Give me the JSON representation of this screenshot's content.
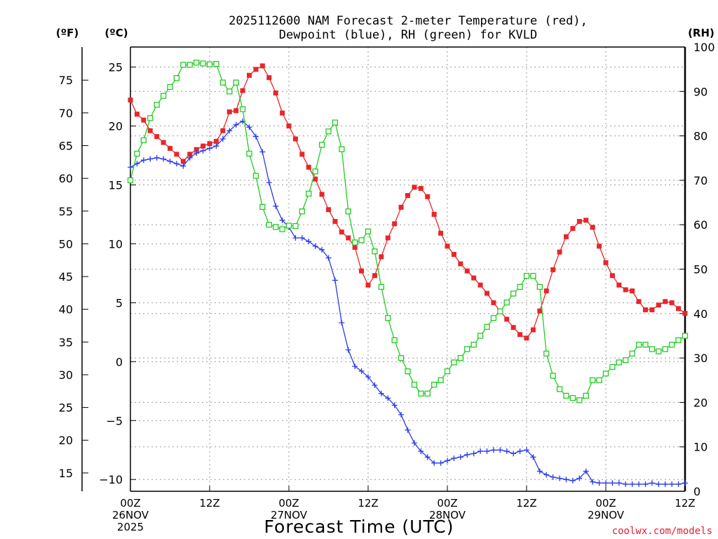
{
  "chart_data": {
    "type": "line",
    "title_line1": "2025112600 NAM Forecast 2-meter Temperature (red),",
    "title_line2": "Dewpoint (blue), RH (green) for KVLD",
    "xlabel": "Forecast Time (UTC)",
    "credit": "coolwx.com/models",
    "unit_f": "(ºF)",
    "unit_c": "(ºC)",
    "unit_rh": "(RH)",
    "celsius_ticks": [
      "25",
      "20",
      "15",
      "10",
      "5",
      "0",
      "−5",
      "−10"
    ],
    "celsius_values": [
      25,
      20,
      15,
      10,
      5,
      0,
      -5,
      -10
    ],
    "fahrenheit_ticks": [
      "75",
      "70",
      "65",
      "60",
      "55",
      "50",
      "45",
      "40",
      "35",
      "30",
      "25",
      "20",
      "15"
    ],
    "fahrenheit_values": [
      75,
      70,
      65,
      60,
      55,
      50,
      45,
      40,
      35,
      30,
      25,
      20,
      15
    ],
    "rh_ticks": [
      "100",
      "90",
      "80",
      "70",
      "60",
      "50",
      "40",
      "30",
      "20",
      "10",
      "0"
    ],
    "rh_values": [
      100,
      90,
      80,
      70,
      60,
      50,
      40,
      30,
      20,
      10,
      0
    ],
    "ylim_c": [
      -11,
      26.7
    ],
    "ylim_rh": [
      0,
      100
    ],
    "x_hours_range": [
      0,
      84
    ],
    "x_ticks": [
      {
        "hour": 0,
        "lines": [
          "00Z",
          "26NOV",
          "2025"
        ]
      },
      {
        "hour": 12,
        "lines": [
          "12Z"
        ]
      },
      {
        "hour": 24,
        "lines": [
          "00Z",
          "27NOV"
        ]
      },
      {
        "hour": 36,
        "lines": [
          "12Z"
        ]
      },
      {
        "hour": 48,
        "lines": [
          "00Z",
          "28NOV"
        ]
      },
      {
        "hour": 60,
        "lines": [
          "12Z"
        ]
      },
      {
        "hour": 72,
        "lines": [
          "00Z",
          "29NOV"
        ]
      },
      {
        "hour": 84,
        "lines": [
          "12Z"
        ]
      }
    ],
    "grid": true,
    "series": [
      {
        "name": "Temperature",
        "units": "°C",
        "color": "#e8262a",
        "marker": "filled-square",
        "values": [
          [
            0,
            22.2
          ],
          [
            1,
            21.0
          ],
          [
            2,
            20.5
          ],
          [
            3,
            19.6
          ],
          [
            4,
            19.1
          ],
          [
            5,
            18.6
          ],
          [
            6,
            18.1
          ],
          [
            7,
            17.6
          ],
          [
            8,
            17.0
          ],
          [
            9,
            17.6
          ],
          [
            10,
            18.0
          ],
          [
            11,
            18.3
          ],
          [
            12,
            18.5
          ],
          [
            13,
            18.7
          ],
          [
            14,
            19.6
          ],
          [
            15,
            21.2
          ],
          [
            16,
            21.3
          ],
          [
            17,
            23.0
          ],
          [
            18,
            24.3
          ],
          [
            19,
            24.8
          ],
          [
            20,
            25.1
          ],
          [
            21,
            24.1
          ],
          [
            22,
            22.8
          ],
          [
            23,
            21.1
          ],
          [
            24,
            20.0
          ],
          [
            25,
            18.9
          ],
          [
            26,
            17.6
          ],
          [
            27,
            16.5
          ],
          [
            28,
            15.5
          ],
          [
            29,
            14.2
          ],
          [
            30,
            12.9
          ],
          [
            31,
            11.9
          ],
          [
            32,
            11.0
          ],
          [
            33,
            10.5
          ],
          [
            34,
            9.7
          ],
          [
            35,
            7.7
          ],
          [
            36,
            6.5
          ],
          [
            37,
            7.3
          ],
          [
            38,
            8.9
          ],
          [
            39,
            10.5
          ],
          [
            40,
            11.7
          ],
          [
            41,
            13.1
          ],
          [
            42,
            14.1
          ],
          [
            43,
            14.8
          ],
          [
            44,
            14.7
          ],
          [
            45,
            14.0
          ],
          [
            46,
            12.5
          ],
          [
            47,
            10.9
          ],
          [
            48,
            9.8
          ],
          [
            49,
            9.1
          ],
          [
            50,
            8.3
          ],
          [
            51,
            7.7
          ],
          [
            52,
            7.1
          ],
          [
            53,
            6.5
          ],
          [
            54,
            5.8
          ],
          [
            55,
            5.0
          ],
          [
            56,
            4.3
          ],
          [
            57,
            3.6
          ],
          [
            58,
            2.9
          ],
          [
            59,
            2.3
          ],
          [
            60,
            2.0
          ],
          [
            61,
            2.7
          ],
          [
            62,
            4.3
          ],
          [
            63,
            6.0
          ],
          [
            64,
            7.8
          ],
          [
            65,
            9.3
          ],
          [
            66,
            10.6
          ],
          [
            67,
            11.3
          ],
          [
            68,
            11.9
          ],
          [
            69,
            12.0
          ],
          [
            70,
            11.4
          ],
          [
            71,
            9.8
          ],
          [
            72,
            8.4
          ],
          [
            73,
            7.3
          ],
          [
            74,
            6.5
          ],
          [
            75,
            6.1
          ],
          [
            76,
            6.0
          ],
          [
            77,
            5.1
          ],
          [
            78,
            4.4
          ],
          [
            79,
            4.4
          ],
          [
            80,
            4.8
          ],
          [
            81,
            5.1
          ],
          [
            82,
            5.0
          ],
          [
            83,
            4.5
          ],
          [
            84,
            4.1
          ]
        ]
      },
      {
        "name": "Dewpoint",
        "units": "°C",
        "color": "#2a3ce8",
        "marker": "plus",
        "values": [
          [
            0,
            16.5
          ],
          [
            1,
            16.8
          ],
          [
            2,
            17.1
          ],
          [
            3,
            17.2
          ],
          [
            4,
            17.3
          ],
          [
            5,
            17.2
          ],
          [
            6,
            17.0
          ],
          [
            7,
            16.8
          ],
          [
            8,
            16.6
          ],
          [
            9,
            17.3
          ],
          [
            10,
            17.7
          ],
          [
            11,
            17.9
          ],
          [
            12,
            18.1
          ],
          [
            13,
            18.3
          ],
          [
            14,
            18.9
          ],
          [
            15,
            19.6
          ],
          [
            16,
            20.1
          ],
          [
            17,
            20.4
          ],
          [
            18,
            19.9
          ],
          [
            19,
            19.1
          ],
          [
            20,
            17.8
          ],
          [
            21,
            15.2
          ],
          [
            22,
            13.2
          ],
          [
            23,
            12.0
          ],
          [
            24,
            11.4
          ],
          [
            25,
            10.5
          ],
          [
            26,
            10.5
          ],
          [
            27,
            10.2
          ],
          [
            28,
            9.8
          ],
          [
            29,
            9.5
          ],
          [
            30,
            8.8
          ],
          [
            31,
            6.9
          ],
          [
            32,
            3.3
          ],
          [
            33,
            1.0
          ],
          [
            34,
            -0.4
          ],
          [
            35,
            -0.8
          ],
          [
            36,
            -1.3
          ],
          [
            37,
            -2.0
          ],
          [
            38,
            -2.7
          ],
          [
            39,
            -3.1
          ],
          [
            40,
            -3.7
          ],
          [
            41,
            -4.5
          ],
          [
            42,
            -5.8
          ],
          [
            43,
            -6.9
          ],
          [
            44,
            -7.6
          ],
          [
            45,
            -8.1
          ],
          [
            46,
            -8.6
          ],
          [
            47,
            -8.6
          ],
          [
            48,
            -8.4
          ],
          [
            49,
            -8.2
          ],
          [
            50,
            -8.1
          ],
          [
            51,
            -7.9
          ],
          [
            52,
            -7.8
          ],
          [
            53,
            -7.6
          ],
          [
            54,
            -7.6
          ],
          [
            55,
            -7.5
          ],
          [
            56,
            -7.5
          ],
          [
            57,
            -7.6
          ],
          [
            58,
            -7.8
          ],
          [
            59,
            -7.6
          ],
          [
            60,
            -7.5
          ],
          [
            61,
            -8.1
          ],
          [
            62,
            -9.3
          ],
          [
            63,
            -9.6
          ],
          [
            64,
            -9.8
          ],
          [
            65,
            -9.9
          ],
          [
            66,
            -10.0
          ],
          [
            67,
            -10.1
          ],
          [
            68,
            -9.9
          ],
          [
            69,
            -9.3
          ],
          [
            70,
            -10.2
          ],
          [
            71,
            -10.3
          ],
          [
            72,
            -10.3
          ],
          [
            73,
            -10.3
          ],
          [
            74,
            -10.3
          ],
          [
            75,
            -10.4
          ],
          [
            76,
            -10.4
          ],
          [
            77,
            -10.4
          ],
          [
            78,
            -10.4
          ],
          [
            79,
            -10.3
          ],
          [
            80,
            -10.4
          ],
          [
            81,
            -10.4
          ],
          [
            82,
            -10.4
          ],
          [
            83,
            -10.4
          ],
          [
            84,
            -10.3
          ]
        ]
      },
      {
        "name": "RH",
        "units": "%",
        "color": "#22cc22",
        "marker": "open-square",
        "values": [
          [
            0,
            70
          ],
          [
            1,
            76
          ],
          [
            2,
            79
          ],
          [
            3,
            84
          ],
          [
            4,
            87
          ],
          [
            5,
            89
          ],
          [
            6,
            91
          ],
          [
            7,
            93
          ],
          [
            8,
            96
          ],
          [
            9,
            96
          ],
          [
            10,
            96.5
          ],
          [
            11,
            96.3
          ],
          [
            12,
            96.1
          ],
          [
            13,
            96.2
          ],
          [
            14,
            92
          ],
          [
            15,
            90
          ],
          [
            16,
            92
          ],
          [
            17,
            86
          ],
          [
            18,
            76
          ],
          [
            19,
            71
          ],
          [
            20,
            64
          ],
          [
            21,
            60
          ],
          [
            22,
            59.5
          ],
          [
            23,
            59
          ],
          [
            24,
            59.8
          ],
          [
            25,
            59.7
          ],
          [
            26,
            63
          ],
          [
            27,
            67
          ],
          [
            28,
            72
          ],
          [
            29,
            78
          ],
          [
            30,
            81
          ],
          [
            31,
            83
          ],
          [
            32,
            77
          ],
          [
            33,
            63
          ],
          [
            34,
            56
          ],
          [
            35,
            56.5
          ],
          [
            36,
            58.5
          ],
          [
            37,
            54
          ],
          [
            38,
            46
          ],
          [
            39,
            39
          ],
          [
            40,
            34
          ],
          [
            41,
            30
          ],
          [
            42,
            27
          ],
          [
            43,
            24
          ],
          [
            44,
            22
          ],
          [
            45,
            22
          ],
          [
            46,
            24
          ],
          [
            47,
            25
          ],
          [
            48,
            27
          ],
          [
            49,
            29
          ],
          [
            50,
            30
          ],
          [
            51,
            32
          ],
          [
            52,
            33
          ],
          [
            53,
            35
          ],
          [
            54,
            37
          ],
          [
            55,
            39
          ],
          [
            56,
            40.5
          ],
          [
            57,
            42.5
          ],
          [
            58,
            44.5
          ],
          [
            59,
            46
          ],
          [
            60,
            48.5
          ],
          [
            61,
            48.5
          ],
          [
            62,
            46
          ],
          [
            63,
            31
          ],
          [
            64,
            26
          ],
          [
            65,
            23
          ],
          [
            66,
            21.5
          ],
          [
            67,
            21
          ],
          [
            68,
            20.5
          ],
          [
            69,
            21.5
          ],
          [
            70,
            25
          ],
          [
            71,
            25
          ],
          [
            72,
            26.5
          ],
          [
            73,
            28
          ],
          [
            74,
            29
          ],
          [
            75,
            29.5
          ],
          [
            76,
            31
          ],
          [
            77,
            33
          ],
          [
            78,
            33
          ],
          [
            79,
            32
          ],
          [
            80,
            31.5
          ],
          [
            81,
            32
          ],
          [
            82,
            33
          ],
          [
            83,
            34
          ],
          [
            84,
            35
          ]
        ]
      }
    ]
  }
}
